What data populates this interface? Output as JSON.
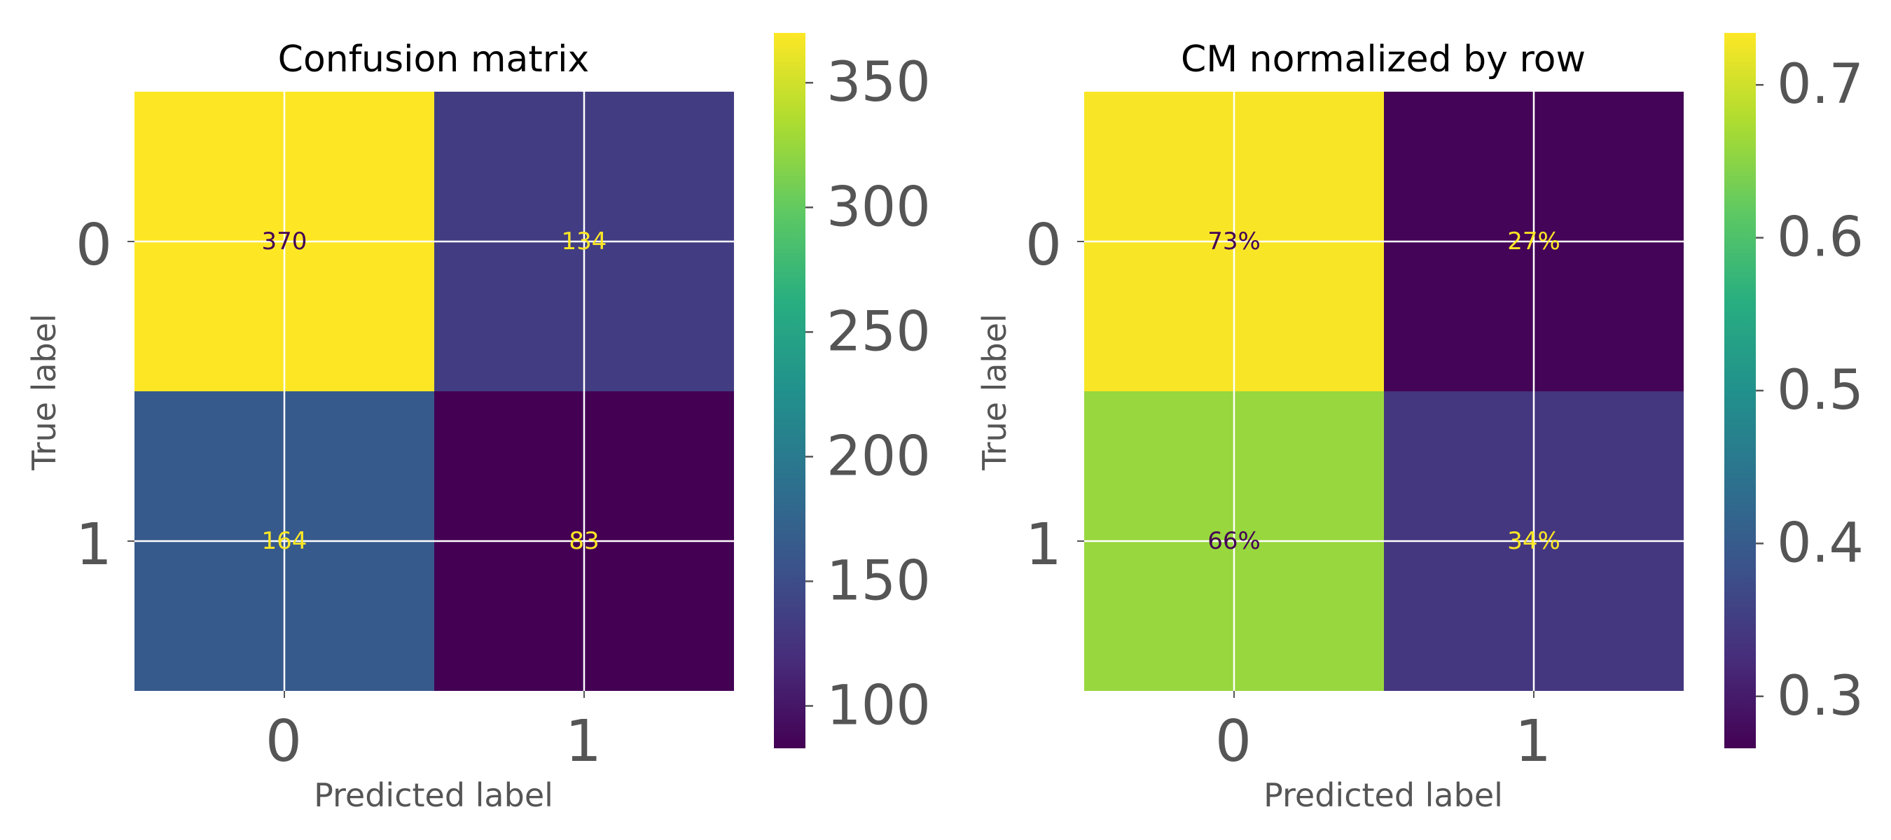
{
  "chart_data": [
    {
      "type": "heatmap",
      "title": "Confusion matrix",
      "xlabel": "Predicted label",
      "ylabel": "True label",
      "x_categories": [
        "0",
        "1"
      ],
      "y_categories": [
        "0",
        "1"
      ],
      "values": [
        [
          370,
          134
        ],
        [
          164,
          83
        ]
      ],
      "cell_labels": [
        [
          "370",
          "134"
        ],
        [
          "164",
          "83"
        ]
      ],
      "colormap": "viridis",
      "colorbar": {
        "min": 83,
        "max": 370,
        "ticks": [
          100,
          150,
          200,
          250,
          300,
          350
        ],
        "tick_labels": [
          "100",
          "150",
          "200",
          "250",
          "300",
          "350"
        ]
      },
      "grid": true
    },
    {
      "type": "heatmap",
      "title": "CM normalized by row",
      "xlabel": "Predicted label",
      "ylabel": "True label",
      "x_categories": [
        "0",
        "1"
      ],
      "y_categories": [
        "0",
        "1"
      ],
      "values": [
        [
          0.73,
          0.27
        ],
        [
          0.66,
          0.34
        ]
      ],
      "cell_labels": [
        [
          "73%",
          "27%"
        ],
        [
          "66%",
          "34%"
        ]
      ],
      "colormap": "viridis",
      "colorbar": {
        "min": 0.266,
        "max": 0.734,
        "ticks": [
          0.3,
          0.4,
          0.5,
          0.6,
          0.7
        ],
        "tick_labels": [
          "0.3",
          "0.4",
          "0.5",
          "0.6",
          "0.7"
        ]
      },
      "grid": true
    }
  ]
}
